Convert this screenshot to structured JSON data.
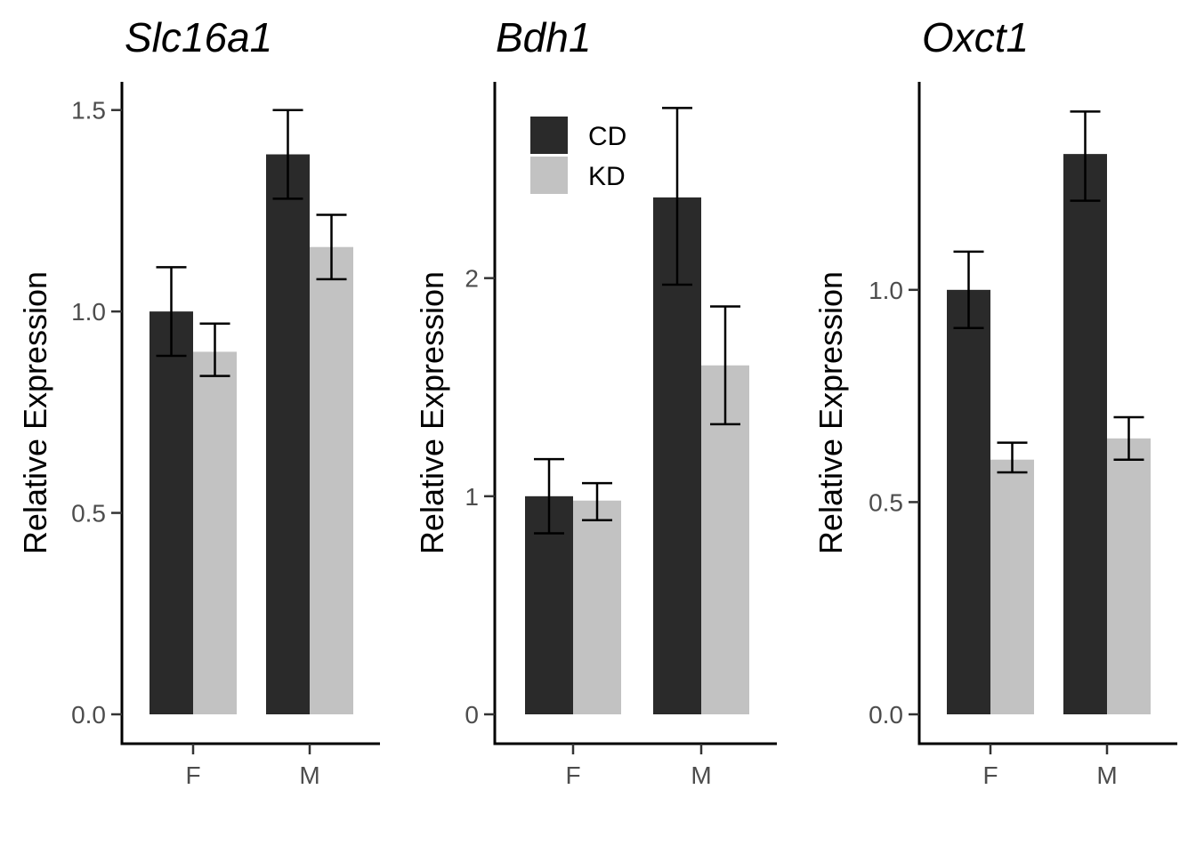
{
  "chart_data": [
    {
      "type": "bar",
      "title": "Slc16a1",
      "ylabel": "Relative Expression",
      "categories": [
        "F",
        "M"
      ],
      "ylim": [
        0,
        1.57
      ],
      "yticks": [
        0.0,
        0.5,
        1.0,
        1.5
      ],
      "ytick_labels": [
        "0.0",
        "0.5",
        "1.0",
        "1.5"
      ],
      "series": [
        {
          "name": "CD",
          "values": [
            1.0,
            1.39
          ],
          "err_low": [
            0.89,
            1.28
          ],
          "err_high": [
            1.11,
            1.5
          ]
        },
        {
          "name": "KD",
          "values": [
            0.9,
            1.16
          ],
          "err_low": [
            0.84,
            1.08
          ],
          "err_high": [
            0.97,
            1.24
          ]
        }
      ],
      "legend": null,
      "grid": false
    },
    {
      "type": "bar",
      "title": "Bdh1",
      "ylabel": "Relative Expression",
      "categories": [
        "F",
        "M"
      ],
      "ylim": [
        0,
        2.9
      ],
      "yticks": [
        0,
        1,
        2
      ],
      "ytick_labels": [
        "0",
        "1",
        "2"
      ],
      "series": [
        {
          "name": "CD",
          "values": [
            1.0,
            2.37
          ],
          "err_low": [
            0.83,
            1.97
          ],
          "err_high": [
            1.17,
            2.78
          ]
        },
        {
          "name": "KD",
          "values": [
            0.98,
            1.6
          ],
          "err_low": [
            0.89,
            1.33
          ],
          "err_high": [
            1.06,
            1.87
          ]
        }
      ],
      "legend": {
        "position": "top-left",
        "entries": [
          "CD",
          "KD"
        ]
      },
      "grid": false
    },
    {
      "type": "bar",
      "title": "Oxct1",
      "ylabel": "Relative Expression",
      "categories": [
        "F",
        "M"
      ],
      "ylim": [
        0,
        1.49
      ],
      "yticks": [
        0.0,
        0.5,
        1.0
      ],
      "ytick_labels": [
        "0.0",
        "0.5",
        "1.0"
      ],
      "series": [
        {
          "name": "CD",
          "values": [
            1.0,
            1.32
          ],
          "err_low": [
            0.91,
            1.21
          ],
          "err_high": [
            1.09,
            1.42
          ]
        },
        {
          "name": "KD",
          "values": [
            0.6,
            0.65
          ],
          "err_low": [
            0.57,
            0.6
          ],
          "err_high": [
            0.64,
            0.7
          ]
        }
      ],
      "legend": null,
      "grid": false
    }
  ],
  "colors": {
    "CD": "#2a2a2a",
    "KD": "#c2c2c2"
  }
}
